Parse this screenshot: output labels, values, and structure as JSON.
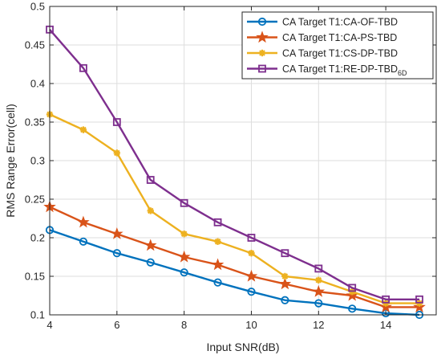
{
  "chart_data": {
    "type": "line",
    "title": "",
    "xlabel": "Input SNR(dB)",
    "ylabel": "RMS Range Error(cell)",
    "xlim": [
      4,
      15.5
    ],
    "ylim": [
      0.1,
      0.5
    ],
    "xticks": [
      4,
      6,
      8,
      10,
      12,
      14
    ],
    "yticks": [
      0.1,
      0.15,
      0.2,
      0.25,
      0.3,
      0.35,
      0.4,
      0.45,
      0.5
    ],
    "xtick_labels": [
      "4",
      "6",
      "8",
      "10",
      "12",
      "14"
    ],
    "ytick_labels": [
      "0.1",
      "0.15",
      "0.2",
      "0.25",
      "0.3",
      "0.35",
      "0.4",
      "0.45",
      "0.5"
    ],
    "grid": true,
    "legend_position": "top-right",
    "x": [
      4,
      5,
      6,
      7,
      8,
      9,
      10,
      11,
      12,
      13,
      14,
      15
    ],
    "series": [
      {
        "name": "CA Target T1:CA-OF-TBD",
        "name_subscript": "",
        "color": "#0072BD",
        "marker": "circle",
        "values": [
          0.21,
          0.195,
          0.18,
          0.168,
          0.155,
          0.142,
          0.13,
          0.119,
          0.115,
          0.108,
          0.102,
          0.1
        ]
      },
      {
        "name": "CA Target T1:CA-PS-TBD",
        "name_subscript": "",
        "color": "#D95319",
        "marker": "star",
        "values": [
          0.24,
          0.22,
          0.205,
          0.19,
          0.175,
          0.165,
          0.15,
          0.14,
          0.13,
          0.125,
          0.11,
          0.11
        ]
      },
      {
        "name": "CA Target T1:CS-DP-TBD",
        "name_subscript": "",
        "color": "#EDB120",
        "marker": "asterisk",
        "values": [
          0.36,
          0.34,
          0.31,
          0.235,
          0.205,
          0.195,
          0.18,
          0.15,
          0.145,
          0.13,
          0.115,
          0.115
        ]
      },
      {
        "name": "CA Target T1:RE-DP-TBD",
        "name_subscript": "6D",
        "color": "#7E2F8E",
        "marker": "square",
        "values": [
          0.47,
          0.42,
          0.35,
          0.275,
          0.245,
          0.22,
          0.2,
          0.18,
          0.16,
          0.135,
          0.12,
          0.12
        ]
      }
    ]
  }
}
